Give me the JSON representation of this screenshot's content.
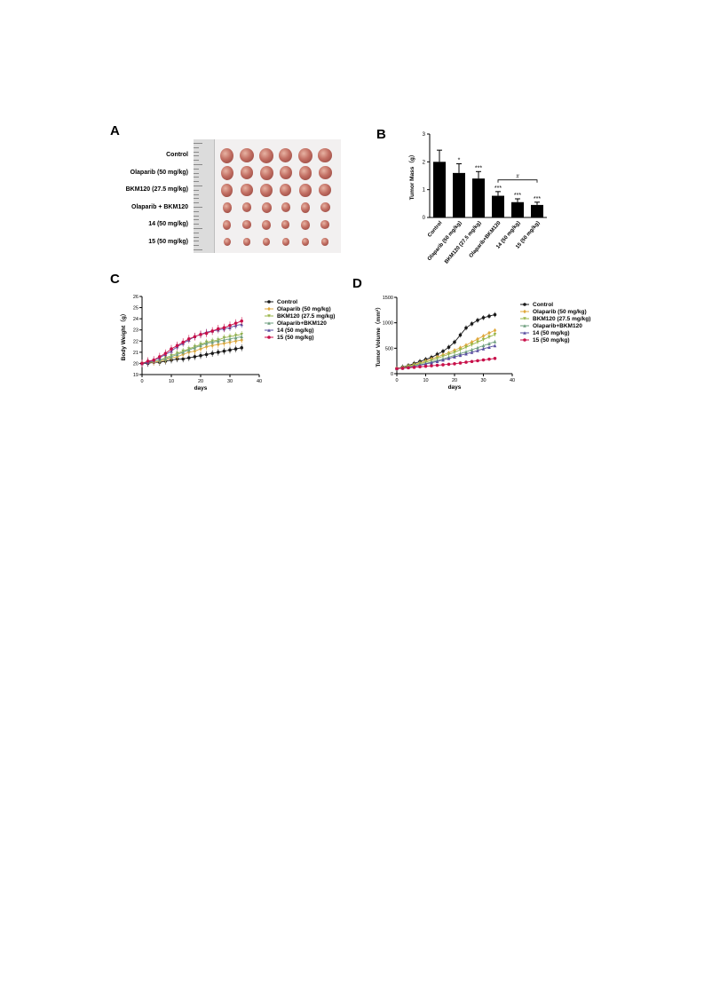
{
  "panels": {
    "A": "A",
    "B": "B",
    "C": "C",
    "D": "D"
  },
  "photo_rows": [
    "Control",
    "Olaparib (50 mg/kg)",
    "BKM120 (27.5 mg/kg)",
    "Olaparib + BKM120",
    "14 (50 mg/kg)",
    "15 (50 mg/kg)"
  ],
  "photo_row_tumor_relative_size": [
    1.0,
    0.92,
    0.85,
    0.68,
    0.6,
    0.52
  ],
  "colors": {
    "Control": "#1a1a1a",
    "Olaparib": "#e0a83c",
    "BKM120": "#9ab64a",
    "Olaparib+BKM120": "#6e9e7e",
    "14": "#5a4fa0",
    "15": "#c8104a"
  },
  "chart_data": [
    {
      "type": "bar",
      "panel": "B",
      "title": "",
      "xlabel": "",
      "ylabel": "Tumor Mass（g）",
      "ylim": [
        0,
        3
      ],
      "yticks": [
        0,
        1,
        2,
        3
      ],
      "categories": [
        "Control",
        "Olaparib (50 mg/kg)",
        "BKM120 (27.5 mg/kg)",
        "Olaparib+BKM120",
        "14 (50 mg/kg)",
        "15 (50 mg/kg)"
      ],
      "values": [
        2.0,
        1.6,
        1.4,
        0.78,
        0.55,
        0.45
      ],
      "errors": [
        0.42,
        0.33,
        0.25,
        0.15,
        0.12,
        0.1
      ],
      "significance": [
        "",
        "*",
        "***",
        "***",
        "***",
        "***"
      ],
      "bracket": {
        "from": 3,
        "to": 5,
        "label": "#"
      }
    },
    {
      "type": "line",
      "panel": "C",
      "xlabel": "days",
      "ylabel": "Body Weight（g）",
      "xlim": [
        0,
        40
      ],
      "ylim": [
        19,
        26
      ],
      "xticks": [
        0,
        10,
        20,
        30,
        40
      ],
      "yticks": [
        19,
        20,
        21,
        22,
        23,
        24,
        25,
        26
      ],
      "x": [
        0,
        2,
        4,
        6,
        8,
        10,
        12,
        14,
        16,
        18,
        20,
        22,
        24,
        26,
        28,
        30,
        32,
        34
      ],
      "series": [
        {
          "name": "Control",
          "marker": "circle",
          "values": [
            20.0,
            20.0,
            20.1,
            20.1,
            20.2,
            20.3,
            20.4,
            20.4,
            20.5,
            20.6,
            20.7,
            20.8,
            20.9,
            21.0,
            21.1,
            21.2,
            21.3,
            21.4
          ],
          "err": 0.3
        },
        {
          "name": "Olaparib (50 mg/kg)",
          "marker": "diamond",
          "values": [
            20.0,
            20.1,
            20.1,
            20.2,
            20.3,
            20.5,
            20.6,
            20.8,
            21.0,
            21.1,
            21.3,
            21.5,
            21.6,
            21.7,
            21.8,
            21.9,
            22.0,
            22.1
          ],
          "err": 0.3
        },
        {
          "name": "BKM120 (27.5 mg/kg)",
          "marker": "triangle-down",
          "values": [
            20.0,
            20.1,
            20.2,
            20.3,
            20.5,
            20.7,
            20.9,
            21.1,
            21.3,
            21.5,
            21.7,
            21.9,
            22.0,
            22.1,
            22.3,
            22.4,
            22.5,
            22.6
          ],
          "err": 0.3
        },
        {
          "name": "Olaparib+BKM120",
          "marker": "triangle-up",
          "values": [
            20.0,
            20.1,
            20.2,
            20.3,
            20.4,
            20.6,
            20.8,
            21.0,
            21.2,
            21.4,
            21.6,
            21.8,
            21.9,
            22.0,
            22.1,
            22.2,
            22.3,
            22.4
          ],
          "err": 0.3
        },
        {
          "name": "14 (50 mg/kg)",
          "marker": "triangle-up",
          "values": [
            20.0,
            20.1,
            20.3,
            20.5,
            20.8,
            21.1,
            21.5,
            21.8,
            22.1,
            22.4,
            22.6,
            22.8,
            22.9,
            23.0,
            23.1,
            23.2,
            23.4,
            23.5
          ],
          "err": 0.3
        },
        {
          "name": "15 (50 mg/kg)",
          "marker": "circle",
          "values": [
            20.0,
            20.2,
            20.3,
            20.6,
            20.9,
            21.3,
            21.6,
            21.9,
            22.2,
            22.4,
            22.6,
            22.7,
            22.9,
            23.1,
            23.2,
            23.4,
            23.6,
            23.8
          ],
          "err": 0.35
        }
      ],
      "legend": "right"
    },
    {
      "type": "line",
      "panel": "D",
      "xlabel": "days",
      "ylabel": "Tumor Volume（mm³）",
      "xlim": [
        0,
        40
      ],
      "ylim": [
        0,
        1500
      ],
      "xticks": [
        0,
        10,
        20,
        30,
        40
      ],
      "yticks": [
        0,
        500,
        1000,
        1500
      ],
      "x": [
        0,
        2,
        4,
        6,
        8,
        10,
        12,
        14,
        16,
        18,
        20,
        22,
        24,
        26,
        28,
        30,
        32,
        34
      ],
      "series": [
        {
          "name": "Control",
          "marker": "circle",
          "values": [
            100,
            130,
            160,
            200,
            240,
            280,
            320,
            380,
            440,
            520,
            620,
            760,
            900,
            980,
            1050,
            1100,
            1130,
            1160
          ],
          "err": 50
        },
        {
          "name": "Olaparib (50 mg/kg)",
          "marker": "diamond",
          "values": [
            100,
            120,
            150,
            180,
            210,
            250,
            290,
            330,
            370,
            410,
            460,
            510,
            560,
            620,
            680,
            740,
            800,
            850
          ],
          "err": 40
        },
        {
          "name": "BKM120 (27.5 mg/kg)",
          "marker": "triangle-down",
          "values": [
            100,
            115,
            140,
            165,
            195,
            225,
            260,
            300,
            340,
            380,
            420,
            470,
            520,
            570,
            620,
            670,
            720,
            770
          ],
          "err": 40
        },
        {
          "name": "Olaparib+BKM120",
          "marker": "triangle-up",
          "values": [
            100,
            110,
            130,
            150,
            175,
            200,
            230,
            260,
            290,
            325,
            360,
            395,
            430,
            470,
            510,
            550,
            590,
            630
          ],
          "err": 35
        },
        {
          "name": "14 (50 mg/kg)",
          "marker": "triangle-up",
          "values": [
            100,
            110,
            125,
            145,
            165,
            190,
            215,
            240,
            270,
            300,
            330,
            360,
            390,
            420,
            455,
            490,
            520,
            550
          ],
          "err": 30
        },
        {
          "name": "15 (50 mg/kg)",
          "marker": "circle",
          "values": [
            100,
            105,
            115,
            125,
            135,
            145,
            155,
            165,
            175,
            185,
            195,
            210,
            225,
            240,
            255,
            270,
            285,
            300
          ],
          "err": 15
        }
      ],
      "legend": "right"
    }
  ]
}
